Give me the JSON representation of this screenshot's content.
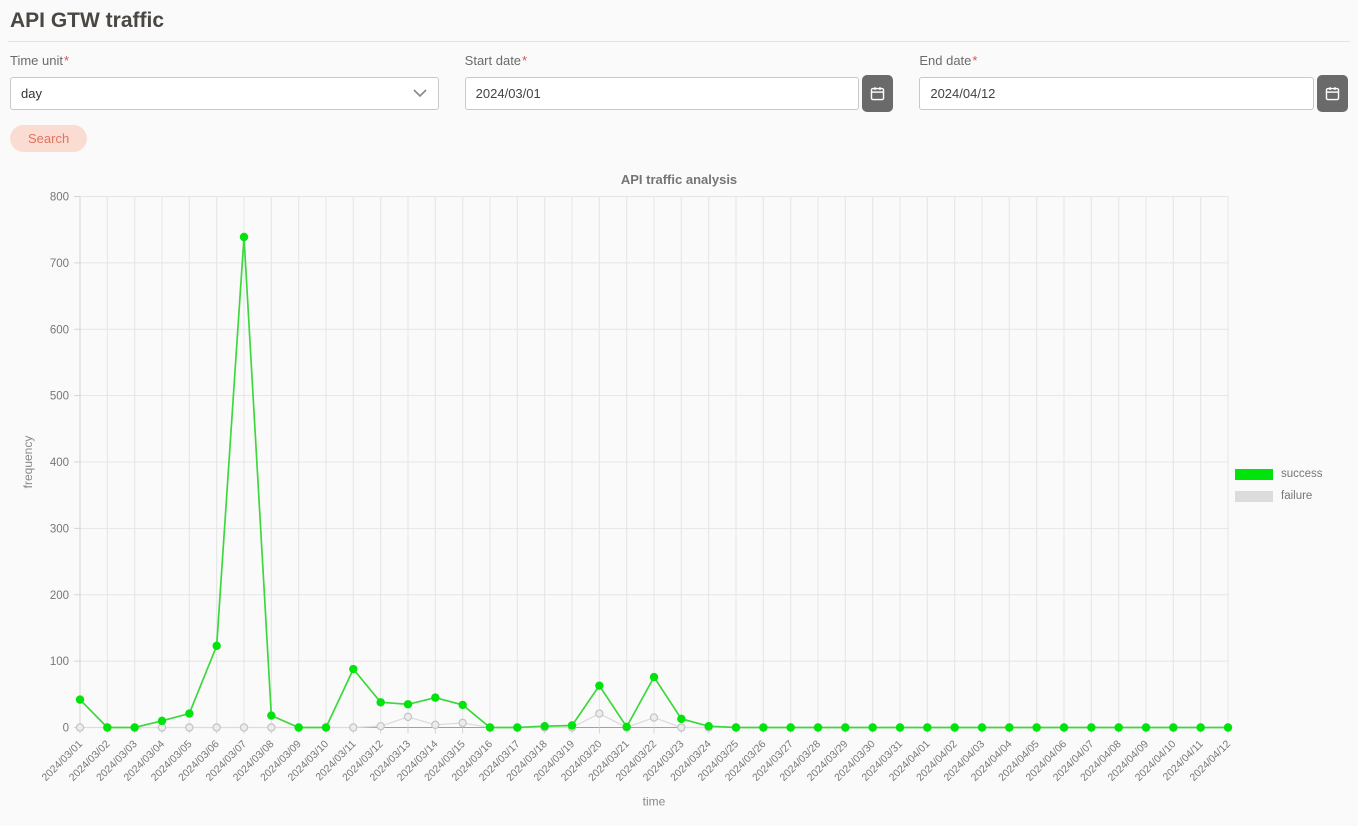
{
  "page": {
    "title": "API GTW traffic"
  },
  "form": {
    "time_unit": {
      "label": "Time unit",
      "required_mark": "*",
      "value": "day"
    },
    "start_date": {
      "label": "Start date",
      "required_mark": "*",
      "value": "2024/03/01"
    },
    "end_date": {
      "label": "End date",
      "required_mark": "*",
      "value": "2024/04/12"
    },
    "search_label": "Search"
  },
  "colors": {
    "success": "#00e30b",
    "success_line": "#3dd83d",
    "failure": "#dcdcdc",
    "failure_dot_fill": "#ececec",
    "failure_dot_stroke": "#c4c4c4",
    "grid": "#e5e5e5",
    "axis_x": "#a0a0a0",
    "axis_y": "#d4d4d4",
    "tick_text": "#777777",
    "button_accent_bg": "#fadcd2",
    "button_accent_text": "#e4735c",
    "calendar_button_bg": "#6a6a6a"
  },
  "chart_data": {
    "type": "line",
    "title": "API traffic analysis",
    "xlabel": "time",
    "ylabel": "frequency",
    "ylim": [
      0,
      800
    ],
    "y_ticks": [
      0,
      100,
      200,
      300,
      400,
      500,
      600,
      700,
      800
    ],
    "grid": true,
    "legend_position": "right",
    "categories": [
      "2024/03/01",
      "2024/03/02",
      "2024/03/03",
      "2024/03/04",
      "2024/03/05",
      "2024/03/06",
      "2024/03/07",
      "2024/03/08",
      "2024/03/09",
      "2024/03/10",
      "2024/03/11",
      "2024/03/12",
      "2024/03/13",
      "2024/03/14",
      "2024/03/15",
      "2024/03/16",
      "2024/03/17",
      "2024/03/18",
      "2024/03/19",
      "2024/03/20",
      "2024/03/21",
      "2024/03/22",
      "2024/03/23",
      "2024/03/24",
      "2024/03/25",
      "2024/03/26",
      "2024/03/27",
      "2024/03/28",
      "2024/03/29",
      "2024/03/30",
      "2024/03/31",
      "2024/04/01",
      "2024/04/02",
      "2024/04/03",
      "2024/04/04",
      "2024/04/05",
      "2024/04/06",
      "2024/04/07",
      "2024/04/08",
      "2024/04/09",
      "2024/04/10",
      "2024/04/11",
      "2024/04/12"
    ],
    "series": [
      {
        "name": "success",
        "values": [
          42,
          0,
          0,
          10,
          21,
          123,
          739,
          18,
          0,
          0,
          88,
          38,
          35,
          45,
          34,
          0,
          0,
          2,
          3,
          63,
          1,
          76,
          13,
          2,
          0,
          0,
          0,
          0,
          0,
          0,
          0,
          0,
          0,
          0,
          0,
          0,
          0,
          0,
          0,
          0,
          0,
          0,
          0
        ]
      },
      {
        "name": "failure",
        "values": [
          0,
          0,
          0,
          0,
          0,
          0,
          0,
          0,
          0,
          0,
          0,
          2,
          16,
          4,
          7,
          0,
          0,
          0,
          0,
          21,
          0,
          15,
          0,
          0,
          0,
          0,
          0,
          0,
          0,
          0,
          0,
          0,
          0,
          0,
          0,
          0,
          0,
          0,
          0,
          0,
          0,
          0,
          0
        ]
      }
    ]
  }
}
